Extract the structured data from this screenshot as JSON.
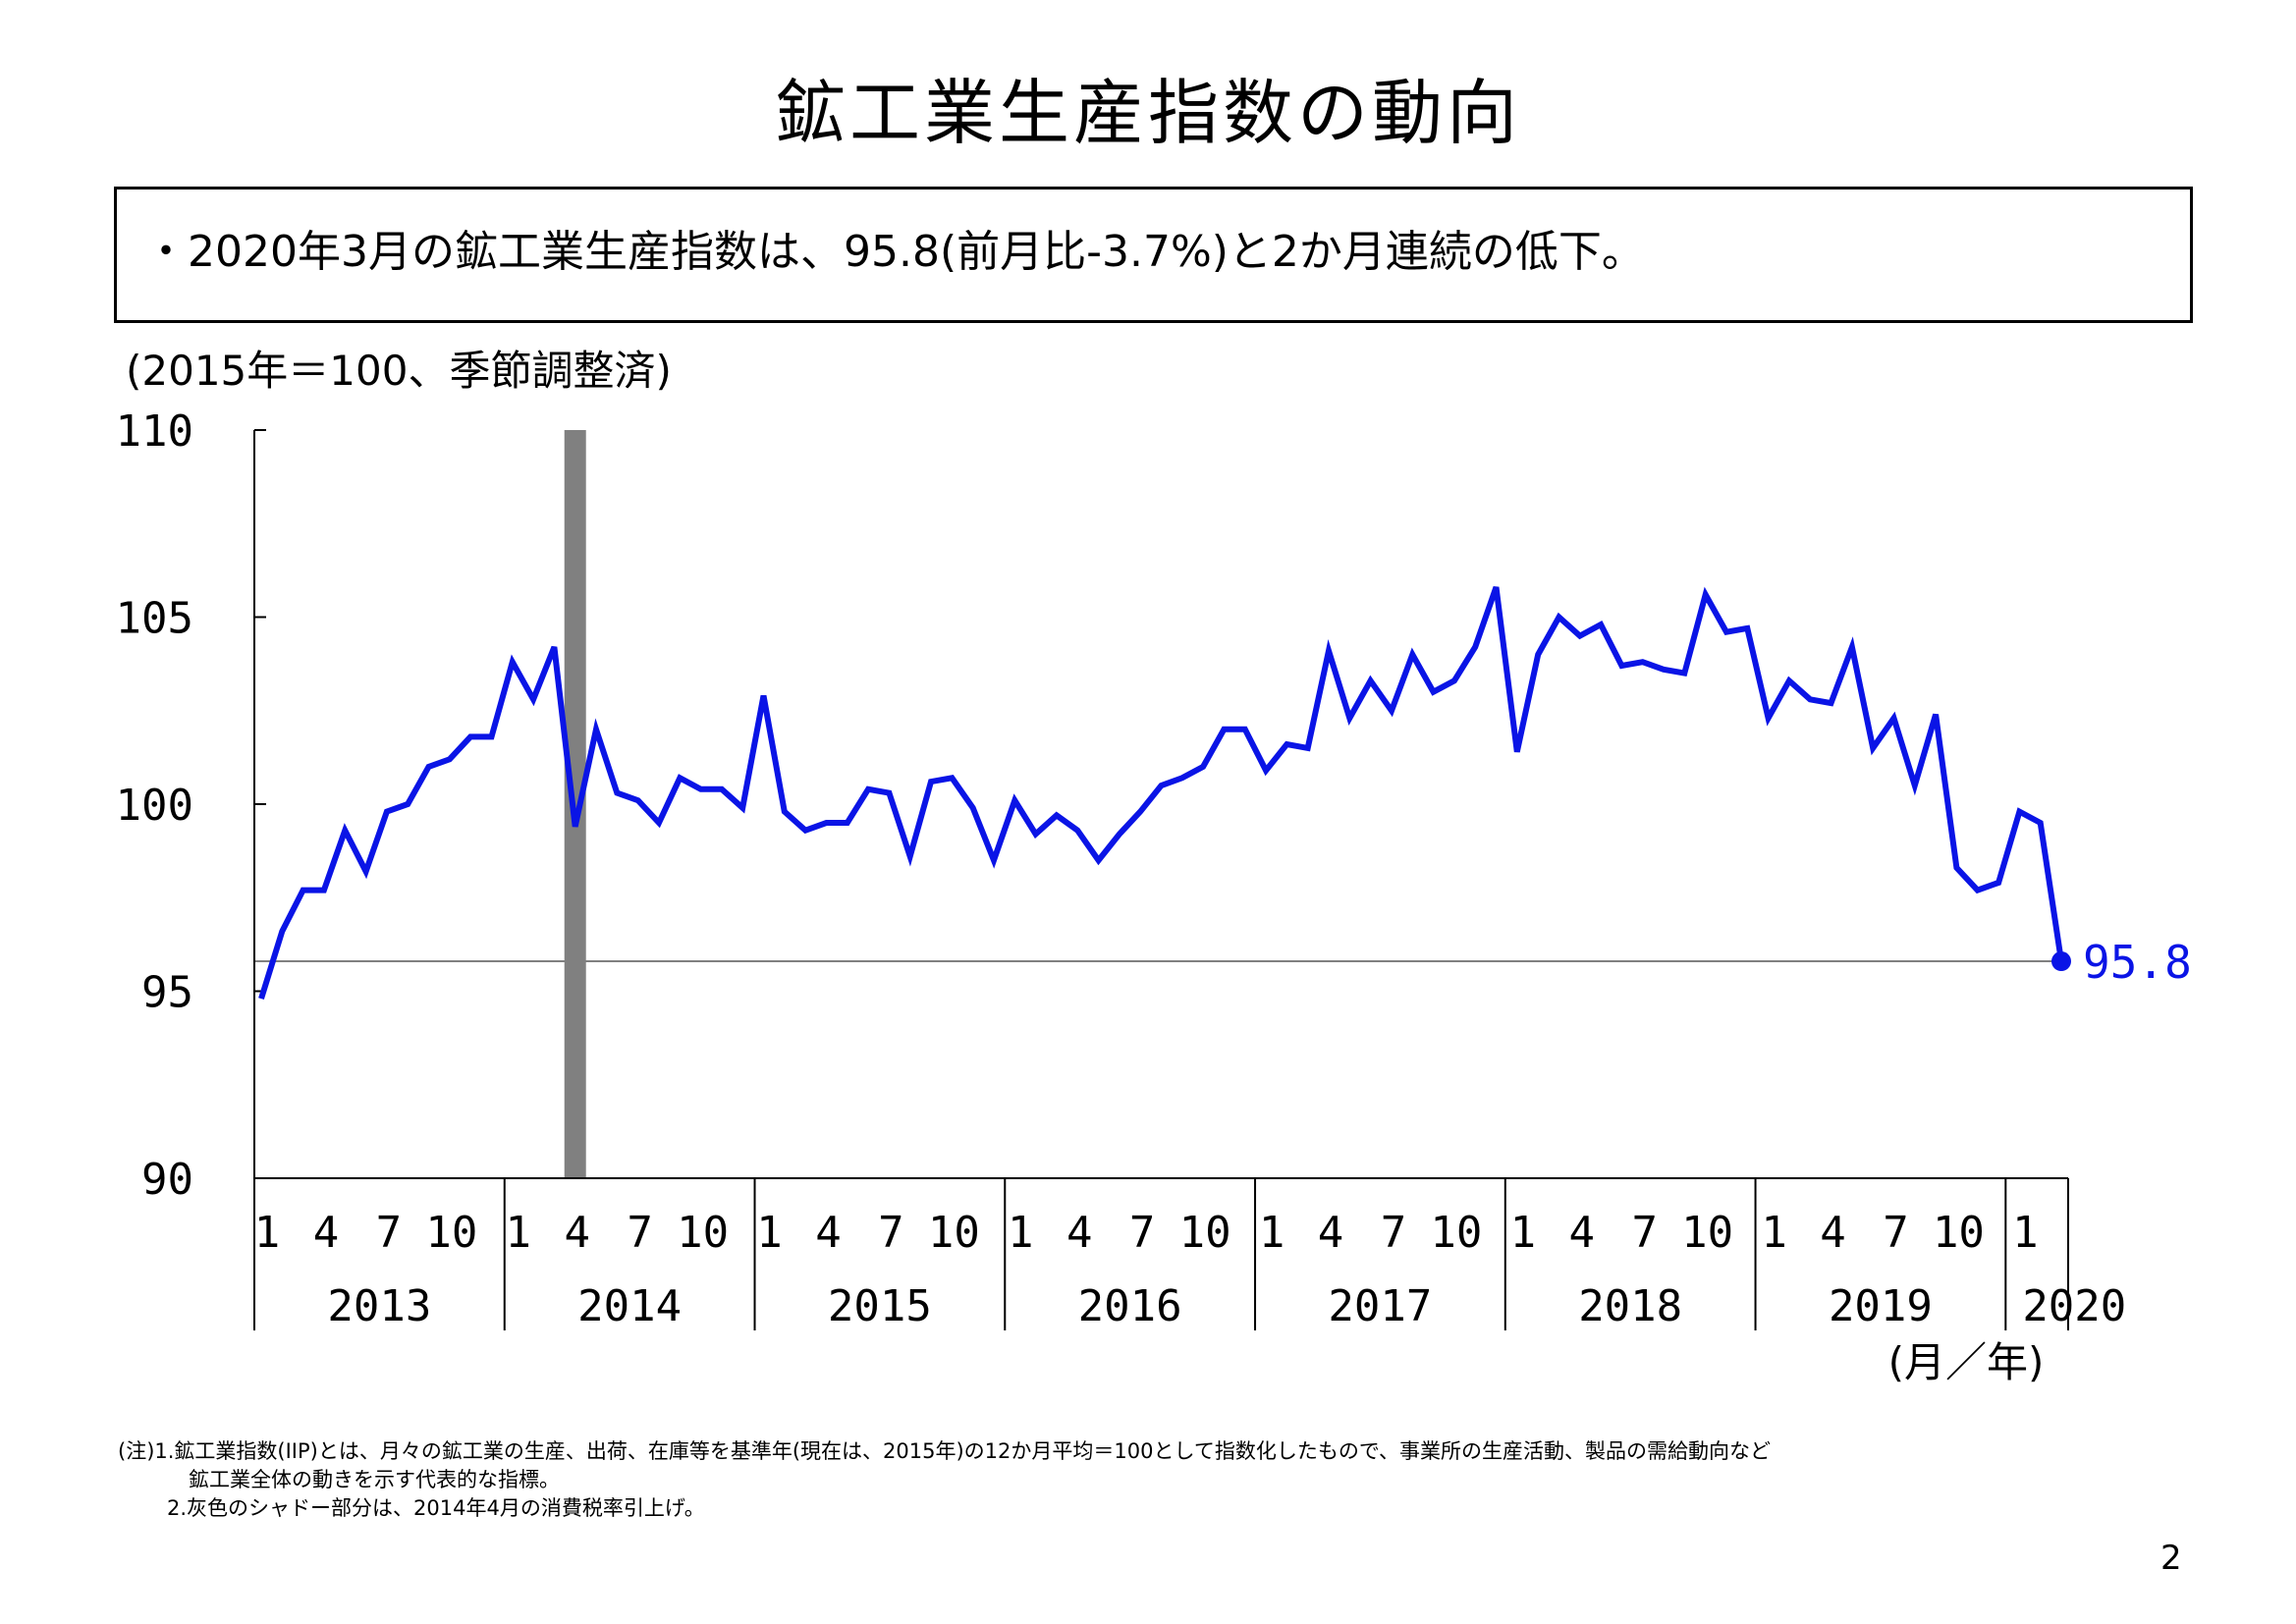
{
  "title": "鉱工業生産指数の動向",
  "summary": "・2020年3月の鉱工業生産指数は、95.8(前月比-3.7%)と2か月連続の低下。",
  "unit_note": "(2015年＝100、季節調整済)",
  "footnotes": [
    "(注)1.鉱工業指数(IIP)とは、月々の鉱工業の生産、出荷、在庫等を基準年(現在は、2015年)の12か月平均＝100として指数化したもので、事業所の生産活動、製品の需給動向など",
    "鉱工業全体の動きを示す代表的な指標。",
    "2.灰色のシャドー部分は、2014年4月の消費税率引上げ。"
  ],
  "page_number": "2",
  "colors": {
    "series": "#0a14e6",
    "shading": "#808080",
    "reference_line": "#808080"
  },
  "chart_data": {
    "type": "line",
    "ylim": [
      90,
      110
    ],
    "y_ticks": [
      "90",
      "95",
      "100",
      "105",
      "110"
    ],
    "x_axis_unit_label": "(月／年)",
    "month_tick_labels": [
      "1",
      "4",
      "7",
      "10"
    ],
    "years": [
      "2013",
      "2014",
      "2015",
      "2016",
      "2017",
      "2018",
      "2019",
      "2020"
    ],
    "shaded_period": "2014-04",
    "last_value_label": "95.8",
    "reference_value": 95.8,
    "series": [
      {
        "start": "2013-01",
        "values": [
          94.8,
          96.6,
          97.7,
          97.7,
          99.3,
          98.2,
          99.8,
          100.0,
          101.0,
          101.2,
          101.8,
          101.8,
          103.8,
          102.8,
          104.2,
          99.4,
          102.0,
          100.3,
          100.1,
          99.5,
          100.7,
          100.4,
          100.4,
          99.9,
          102.9,
          99.8,
          99.3,
          99.5,
          99.5,
          100.4,
          100.3,
          98.6,
          100.6,
          100.7,
          99.9,
          98.5,
          100.1,
          99.2,
          99.7,
          99.3,
          98.5,
          99.2,
          99.8,
          100.5,
          100.7,
          101.0,
          102.0,
          102.0,
          100.9,
          101.6,
          101.5,
          104.1,
          102.3,
          103.3,
          102.5,
          104.0,
          103.0,
          103.3,
          104.2,
          105.8,
          101.4,
          104.0,
          105.0,
          104.5,
          104.8,
          103.7,
          103.8,
          103.6,
          103.5,
          105.6,
          104.6,
          104.7,
          102.3,
          103.3,
          102.8,
          102.7,
          104.2,
          101.5,
          102.3,
          100.5,
          102.4,
          98.3,
          97.7,
          97.9,
          99.8,
          99.5,
          95.8
        ]
      }
    ]
  }
}
